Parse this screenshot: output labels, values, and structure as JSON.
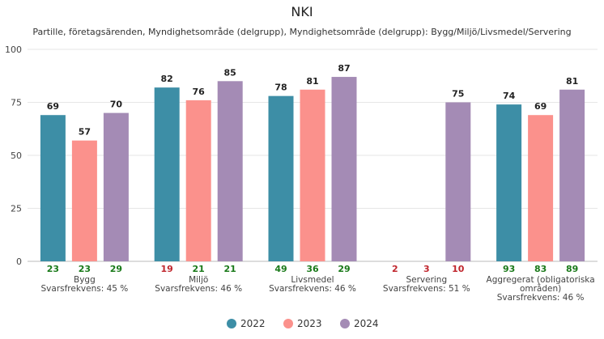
{
  "title": "NKI",
  "subtitle": "Partille, företagsärenden, Myndighetsområde (delgrupp), Myndighetsområde (delgrupp): Bygg/Miljö/Livsmedel/Servering",
  "chart_data": {
    "type": "bar",
    "title": "NKI",
    "subtitle": "Partille, företagsärenden, Myndighetsområde (delgrupp), Myndighetsområde (delgrupp): Bygg/Miljö/Livsmedel/Servering",
    "ylim": [
      0,
      100
    ],
    "yticks": [
      0,
      25,
      50,
      75,
      100
    ],
    "grid": true,
    "legend_position": "bottom",
    "categories": [
      {
        "name_lines": [
          "Bygg"
        ],
        "response_lines": [
          "Svarsfrekvens: 45 %"
        ]
      },
      {
        "name_lines": [
          "Miljö"
        ],
        "response_lines": [
          "Svarsfrekvens: 46 %"
        ]
      },
      {
        "name_lines": [
          "Livsmedel"
        ],
        "response_lines": [
          "Svarsfrekvens: 46 %"
        ]
      },
      {
        "name_lines": [
          "Servering"
        ],
        "response_lines": [
          "Svarsfrekvens: 51 %"
        ]
      },
      {
        "name_lines": [
          "Aggregerat (obligatoriska",
          "områden)"
        ],
        "response_lines": [
          "Svarsfrekvens: 46 %"
        ]
      }
    ],
    "series": [
      {
        "name": "2022",
        "color": "#3d8ea6",
        "values": [
          69,
          82,
          78,
          null,
          74
        ],
        "counts": [
          23,
          19,
          49,
          2,
          93
        ]
      },
      {
        "name": "2023",
        "color": "#fb918c",
        "values": [
          57,
          76,
          81,
          null,
          69
        ],
        "counts": [
          23,
          21,
          36,
          3,
          83
        ]
      },
      {
        "name": "2024",
        "color": "#a48bb5",
        "values": [
          70,
          85,
          87,
          75,
          81
        ],
        "counts": [
          29,
          21,
          29,
          10,
          89
        ]
      }
    ],
    "count_colors": {
      "ok": "#1a7a1a",
      "low": "#c0262d"
    }
  }
}
